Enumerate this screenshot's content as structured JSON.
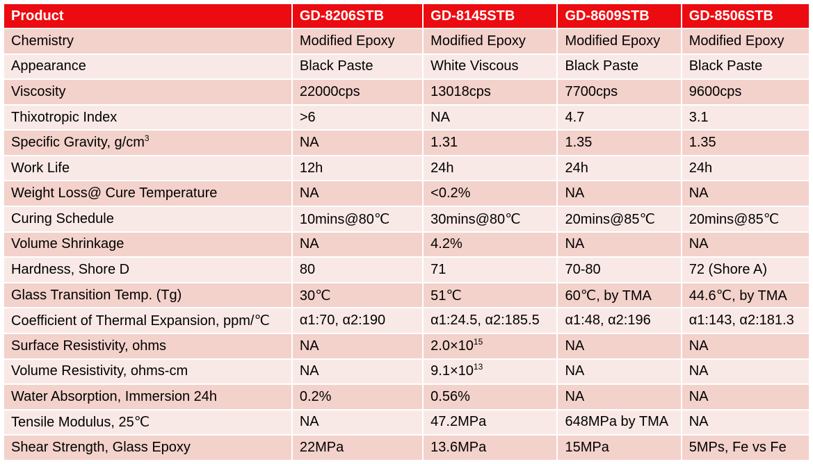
{
  "header": [
    "Product",
    "GD-8206STB",
    "GD-8145STB",
    "GD-8609STB",
    "GD-8506STB"
  ],
  "rows": [
    [
      "Chemistry",
      "Modified Epoxy",
      "Modified Epoxy",
      "Modified Epoxy",
      "Modified Epoxy"
    ],
    [
      "Appearance",
      "Black Paste",
      "White Viscous",
      "Black Paste",
      "Black Paste"
    ],
    [
      "Viscosity",
      "22000cps",
      "13018cps",
      "7700cps",
      "9600cps"
    ],
    [
      "Thixotropic Index",
      ">6",
      "NA",
      "4.7",
      "3.1"
    ],
    [
      "Specific Gravity, g/cm",
      "NA",
      "1.31",
      "1.35",
      "1.35"
    ],
    [
      "Work Life",
      "12h",
      "24h",
      "24h",
      "24h"
    ],
    [
      "Weight Loss@ Cure Temperature",
      "NA",
      "<0.2%",
      "NA",
      "NA"
    ],
    [
      "Curing Schedule",
      "10mins@80℃",
      "30mins@80℃",
      "20mins@85℃",
      "20mins@85℃"
    ],
    [
      "Volume Shrinkage",
      "NA",
      "4.2%",
      "NA",
      "NA"
    ],
    [
      "Hardness, Shore D",
      "80",
      "71",
      "70-80",
      "72 (Shore A)"
    ],
    [
      "Glass Transition Temp. (Tg)",
      "30℃",
      "51℃",
      "60℃, by TMA",
      "44.6℃, by TMA"
    ],
    [
      "Coefficient of Thermal Expansion, ppm/℃",
      "α1:70, α2:190",
      "α1:24.5, α2:185.5",
      "α1:48, α2:196",
      "α1:143, α2:181.3"
    ],
    [
      "Surface Resistivity, ohms",
      "NA",
      "2.0×10",
      "NA",
      "NA"
    ],
    [
      "Volume Resistivity, ohms-cm",
      "NA",
      "9.1×10",
      "NA",
      "NA"
    ],
    [
      "Water Absorption, Immersion 24h",
      "0.2%",
      "0.56%",
      "NA",
      "NA"
    ],
    [
      "Tensile Modulus, 25℃",
      "NA",
      "47.2MPa",
      "648MPa by TMA",
      "NA"
    ],
    [
      "Shear Strength, Glass Epoxy",
      "22MPa",
      "13.6MPa",
      "15MPa",
      "5MPs, Fe vs Fe"
    ]
  ],
  "superscripts": {
    "specific_gravity_unit": "3",
    "surface_resistivity_exp": "15",
    "volume_resistivity_exp": "13"
  }
}
